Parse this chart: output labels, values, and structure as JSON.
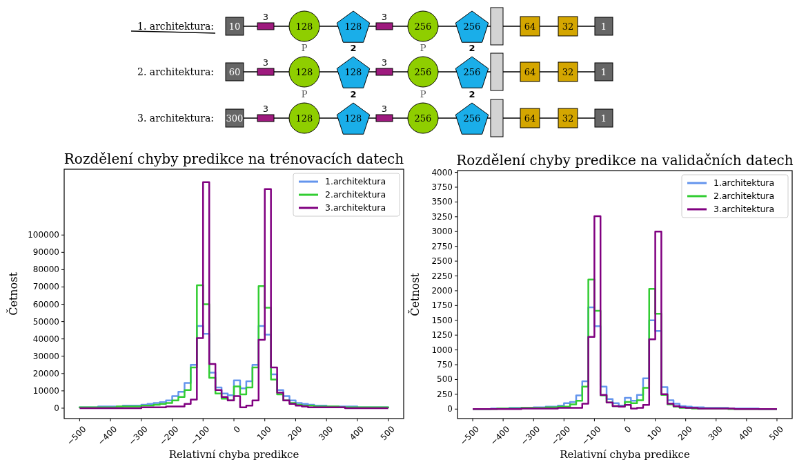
{
  "chart_data": [
    {
      "type": "other",
      "y_categories": [
        "1. architektura:",
        "2. architektura:",
        "3. architektura:"
      ],
      "cell_labels": [
        [
          [
            null,
            "10"
          ],
          [
            "3",
            null
          ],
          [
            null,
            "128"
          ],
          [
            null,
            "128"
          ],
          [
            "3",
            null
          ],
          [
            null,
            "256"
          ],
          [
            null,
            "256"
          ],
          [
            null,
            null
          ],
          [
            null,
            "64"
          ],
          [
            null,
            "32"
          ],
          [
            null,
            "1"
          ]
        ],
        [
          [
            null,
            "60"
          ],
          [
            "3",
            null
          ],
          [
            "P",
            "128"
          ],
          [
            "2",
            "128"
          ],
          [
            "3",
            null
          ],
          [
            "P",
            "256"
          ],
          [
            "2",
            "256"
          ],
          [
            null,
            null
          ],
          [
            null,
            "64"
          ],
          [
            null,
            "32"
          ],
          [
            null,
            "1"
          ]
        ],
        [
          [
            null,
            "300"
          ],
          [
            "3",
            null
          ],
          [
            "P",
            "128"
          ],
          [
            "2",
            "128"
          ],
          [
            "3",
            null
          ],
          [
            "P",
            "256"
          ],
          [
            "2",
            "256"
          ],
          [
            null,
            null
          ],
          [
            null,
            "64"
          ],
          [
            null,
            "32"
          ],
          [
            null,
            "1"
          ]
        ]
      ]
    },
    {
      "type": "histogram",
      "title": "Rozdělení chyby predikce na trénovacích datech",
      "xlabel": "Relativní chyba predikce",
      "ylabel": "Četnost",
      "bins": [
        -500,
        -480,
        -460,
        -440,
        -420,
        -400,
        -380,
        -360,
        -340,
        -320,
        -300,
        -280,
        -260,
        -240,
        -220,
        -200,
        -180,
        -160,
        -140,
        -120,
        -100,
        -80,
        -60,
        -40,
        -20,
        0,
        20,
        40,
        60,
        80,
        100,
        120,
        140,
        160,
        180,
        200,
        220,
        240,
        260,
        280,
        300,
        320,
        340,
        360,
        380,
        400,
        420,
        440,
        460,
        480,
        500
      ],
      "series": [
        {
          "name": "1.architektura",
          "color": "#6495ed",
          "values": [
            500,
            500,
            500,
            1000,
            1000,
            1000,
            1000,
            1500,
            1500,
            1500,
            2000,
            2500,
            3000,
            3500,
            4500,
            7000,
            9500,
            14500,
            25000,
            47500,
            43000,
            20500,
            12000,
            8500,
            7500,
            16000,
            11500,
            15500,
            25000,
            47500,
            42500,
            19500,
            10500,
            7000,
            4500,
            3000,
            2500,
            2000,
            1500,
            1500,
            1000,
            1000,
            1000,
            1000,
            1000,
            500,
            500,
            500,
            500,
            500
          ]
        },
        {
          "name": "2.architektura",
          "color": "#32cd32",
          "values": [
            500,
            500,
            500,
            500,
            500,
            500,
            1000,
            1000,
            1000,
            1000,
            1500,
            1500,
            2000,
            2500,
            3000,
            4500,
            6500,
            10500,
            23500,
            71000,
            60000,
            17500,
            8500,
            5500,
            4500,
            12500,
            8000,
            12000,
            23500,
            70500,
            58000,
            16500,
            8000,
            4500,
            3000,
            2000,
            1500,
            1500,
            1000,
            1000,
            1000,
            1000,
            500,
            500,
            500,
            500,
            500,
            500,
            500,
            500
          ]
        },
        {
          "name": "3.architektura",
          "color": "#800080",
          "values": [
            0,
            0,
            0,
            0,
            0,
            0,
            0,
            0,
            0,
            0,
            500,
            500,
            500,
            500,
            1000,
            1000,
            1000,
            2500,
            5000,
            40500,
            130500,
            25500,
            10500,
            6500,
            4500,
            7000,
            500,
            1500,
            4500,
            39500,
            126500,
            23500,
            9000,
            4500,
            2500,
            1500,
            1000,
            500,
            500,
            500,
            500,
            500,
            500,
            0,
            0,
            0,
            0,
            0,
            0,
            0
          ]
        }
      ],
      "xlim": [
        -550,
        550
      ],
      "xticks": [
        {
          "value": -500,
          "label": "−500"
        },
        {
          "value": -400,
          "label": "−400"
        },
        {
          "value": -300,
          "label": "−300"
        },
        {
          "value": -200,
          "label": "−200"
        },
        {
          "value": -100,
          "label": "−100"
        },
        0,
        100,
        200,
        300,
        400,
        500
      ],
      "ylim": [
        -6000,
        138000
      ],
      "yticks": [
        0,
        10000,
        20000,
        30000,
        40000,
        50000,
        60000,
        70000,
        80000,
        90000,
        100000
      ],
      "legend": "top right",
      "grid": false
    },
    {
      "type": "histogram",
      "title": "Rozdělení chyby predikce na validačních datech",
      "xlabel": "Relativní chyba predikce",
      "ylabel": "Četnost",
      "bins": [
        -500,
        -480,
        -460,
        -440,
        -420,
        -400,
        -380,
        -360,
        -340,
        -320,
        -300,
        -280,
        -260,
        -240,
        -220,
        -200,
        -180,
        -160,
        -140,
        -120,
        -100,
        -80,
        -60,
        -40,
        -20,
        0,
        20,
        40,
        60,
        80,
        100,
        120,
        140,
        160,
        180,
        200,
        220,
        240,
        260,
        280,
        300,
        320,
        340,
        360,
        380,
        400,
        420,
        440,
        460,
        480,
        500
      ],
      "series": [
        {
          "name": "1.architektura",
          "color": "#6495ed",
          "values": [
            0,
            0,
            0,
            10,
            10,
            10,
            20,
            20,
            20,
            20,
            30,
            30,
            40,
            40,
            60,
            100,
            120,
            230,
            470,
            1720,
            1400,
            380,
            170,
            100,
            60,
            190,
            140,
            240,
            520,
            1500,
            1320,
            370,
            150,
            90,
            50,
            40,
            30,
            30,
            20,
            20,
            20,
            20,
            10,
            10,
            10,
            10,
            10,
            0,
            0,
            0
          ]
        },
        {
          "name": "2.architektura",
          "color": "#32cd32",
          "values": [
            0,
            0,
            0,
            0,
            10,
            10,
            10,
            10,
            20,
            20,
            20,
            20,
            30,
            30,
            40,
            40,
            80,
            140,
            380,
            2190,
            1660,
            230,
            110,
            50,
            40,
            120,
            100,
            150,
            360,
            2030,
            1610,
            240,
            80,
            40,
            20,
            20,
            10,
            10,
            10,
            10,
            10,
            10,
            0,
            0,
            0,
            0,
            0,
            0,
            0,
            0
          ]
        },
        {
          "name": "3.architektura",
          "color": "#800080",
          "values": [
            0,
            0,
            0,
            0,
            0,
            0,
            0,
            0,
            10,
            10,
            10,
            10,
            10,
            10,
            20,
            20,
            20,
            20,
            90,
            1220,
            3260,
            240,
            110,
            50,
            40,
            70,
            10,
            20,
            70,
            1180,
            3000,
            250,
            90,
            50,
            30,
            20,
            20,
            10,
            10,
            10,
            10,
            10,
            10,
            0,
            0,
            0,
            0,
            0,
            0,
            0
          ]
        }
      ],
      "xlim": [
        -550,
        550
      ],
      "xticks": [
        {
          "value": -500,
          "label": "−500"
        },
        {
          "value": -400,
          "label": "−400"
        },
        {
          "value": -300,
          "label": "−300"
        },
        {
          "value": -200,
          "label": "−200"
        },
        {
          "value": -100,
          "label": "−100"
        },
        0,
        100,
        200,
        300,
        400,
        500
      ],
      "ylim": [
        -160,
        4030
      ],
      "yticks": [
        0,
        250,
        500,
        750,
        1000,
        1250,
        1500,
        1750,
        2000,
        2250,
        2500,
        2750,
        3000,
        3250,
        3500,
        3750,
        4000
      ],
      "legend": "top right",
      "grid": false
    }
  ]
}
